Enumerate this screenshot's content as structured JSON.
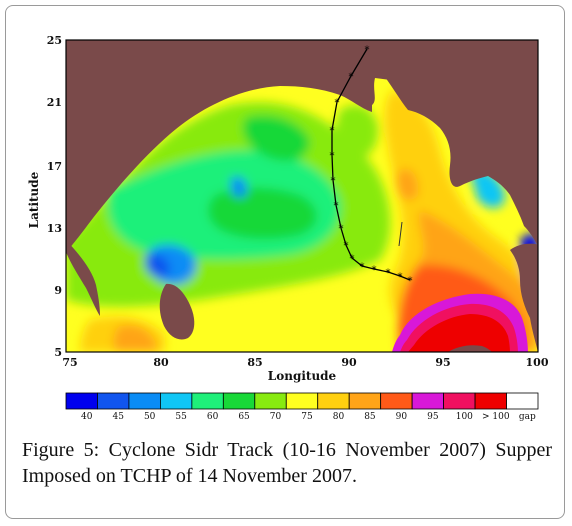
{
  "figure": {
    "caption": "Figure 5: Cyclone Sidr Track (10-16 November 2007) Supper Imposed on TCHP of 14 November 2007."
  },
  "map": {
    "xlabel": "Longitude",
    "ylabel": "Latitude",
    "x_ticks": [
      "75",
      "80",
      "85",
      "90",
      "95",
      "100"
    ],
    "y_ticks": [
      "25",
      "21",
      "17",
      "13",
      "9",
      "5"
    ],
    "x_range": [
      75,
      100
    ],
    "y_range": [
      5,
      25
    ],
    "land_color": "#7a4a4a",
    "track_color": "#000000"
  },
  "colorbar": {
    "labels": [
      "40",
      "45",
      "50",
      "55",
      "60",
      "65",
      "70",
      "75",
      "80",
      "85",
      "90",
      "95",
      "100",
      "> 100",
      "gap"
    ],
    "colors": [
      "#0000ee",
      "#1155ee",
      "#0a8cf5",
      "#10c6f5",
      "#1ff07a",
      "#18d838",
      "#88ea10",
      "#ffff20",
      "#ffd010",
      "#ffa418",
      "#ff5a18",
      "#d818d8",
      "#f01060",
      "#ee0000",
      "#ffffff"
    ]
  }
}
